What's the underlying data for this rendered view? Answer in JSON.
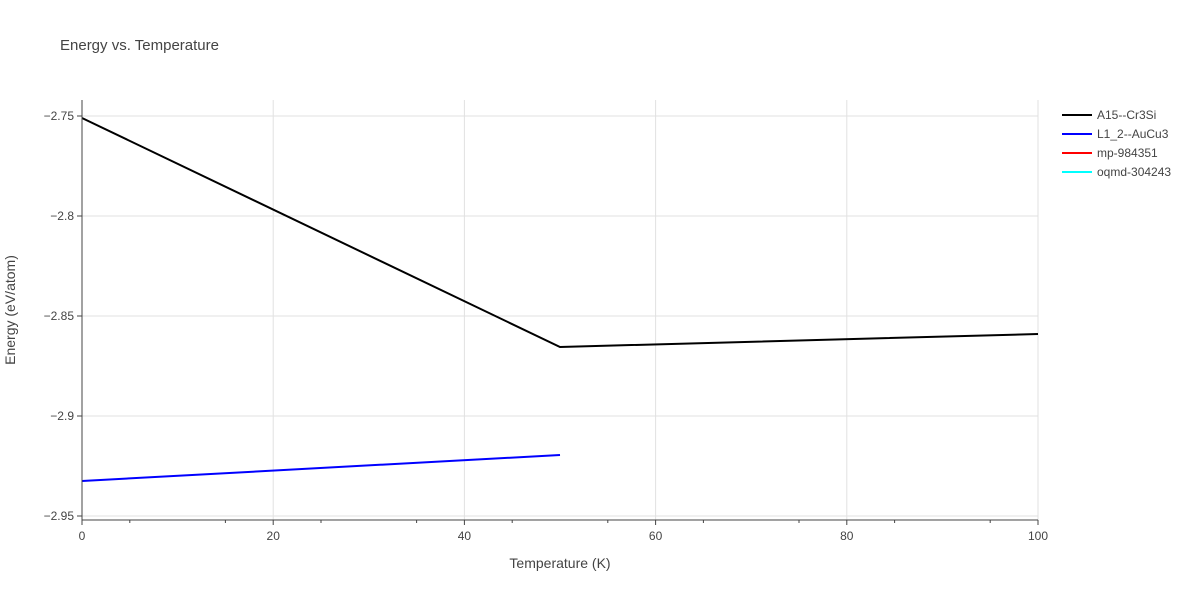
{
  "chart_data": {
    "type": "line",
    "title": "Energy vs. Temperature",
    "xlabel": "Temperature (K)",
    "ylabel": "Energy (eV/atom)",
    "xlim": [
      0,
      100
    ],
    "ylim": [
      -2.952,
      -2.742
    ],
    "xticks": [
      0,
      20,
      40,
      60,
      80,
      100
    ],
    "xtick_labels": [
      "0",
      "20",
      "40",
      "60",
      "80",
      "100"
    ],
    "yticks": [
      -2.75,
      -2.8,
      -2.85,
      -2.9,
      -2.95
    ],
    "ytick_labels": [
      "−2.75",
      "−2.8",
      "−2.85",
      "−2.9",
      "−2.95"
    ],
    "grid": true,
    "legend_position": "top-right, outside plot",
    "series": [
      {
        "name": "A15--Cr3Si",
        "color": "#000000",
        "x": [
          0,
          50,
          100
        ],
        "y": [
          -2.751,
          -2.8655,
          -2.859
        ]
      },
      {
        "name": "L1_2--AuCu3",
        "color": "#0000ff",
        "x": [
          0,
          50
        ],
        "y": [
          -2.9325,
          -2.9195
        ]
      },
      {
        "name": "mp-984351",
        "color": "#ff0000",
        "x": [],
        "y": []
      },
      {
        "name": "oqmd-304243",
        "color": "#00ffff",
        "x": [],
        "y": []
      }
    ]
  }
}
